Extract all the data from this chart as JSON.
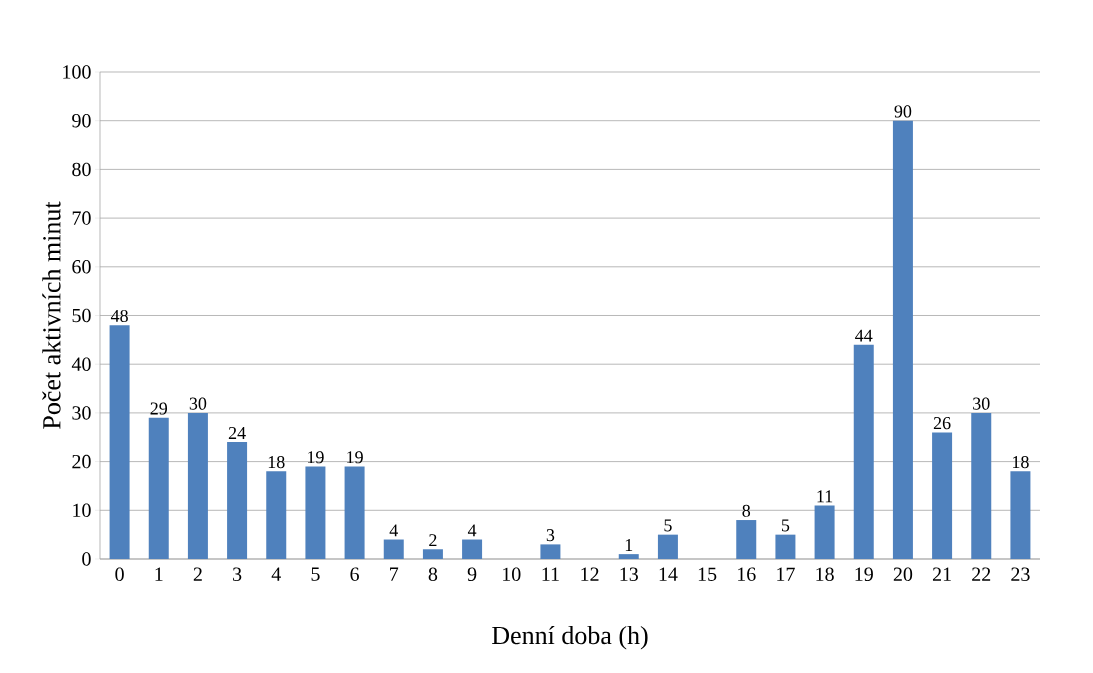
{
  "chart_data": {
    "type": "bar",
    "xlabel": "Denní doba (h)",
    "ylabel": "Počet aktivních minut",
    "categories": [
      "0",
      "1",
      "2",
      "3",
      "4",
      "5",
      "6",
      "7",
      "8",
      "9",
      "10",
      "11",
      "12",
      "13",
      "14",
      "15",
      "16",
      "17",
      "18",
      "19",
      "20",
      "21",
      "22",
      "23"
    ],
    "values": [
      48,
      29,
      30,
      24,
      18,
      19,
      19,
      4,
      2,
      4,
      0,
      3,
      0,
      1,
      5,
      0,
      8,
      5,
      11,
      44,
      90,
      26,
      30,
      18
    ],
    "value_labels": [
      "48",
      "29",
      "30",
      "24",
      "18",
      "19",
      "19",
      "4",
      "2",
      "4",
      null,
      "3",
      null,
      "1",
      "5",
      null,
      "8",
      "5",
      "11",
      "44",
      "90",
      "26",
      "30",
      "18"
    ],
    "color": "#4f81bd",
    "ylim": [
      0,
      100
    ],
    "yticks": [
      0,
      10,
      20,
      30,
      40,
      50,
      60,
      70,
      80,
      90,
      100
    ],
    "grid": "y"
  }
}
